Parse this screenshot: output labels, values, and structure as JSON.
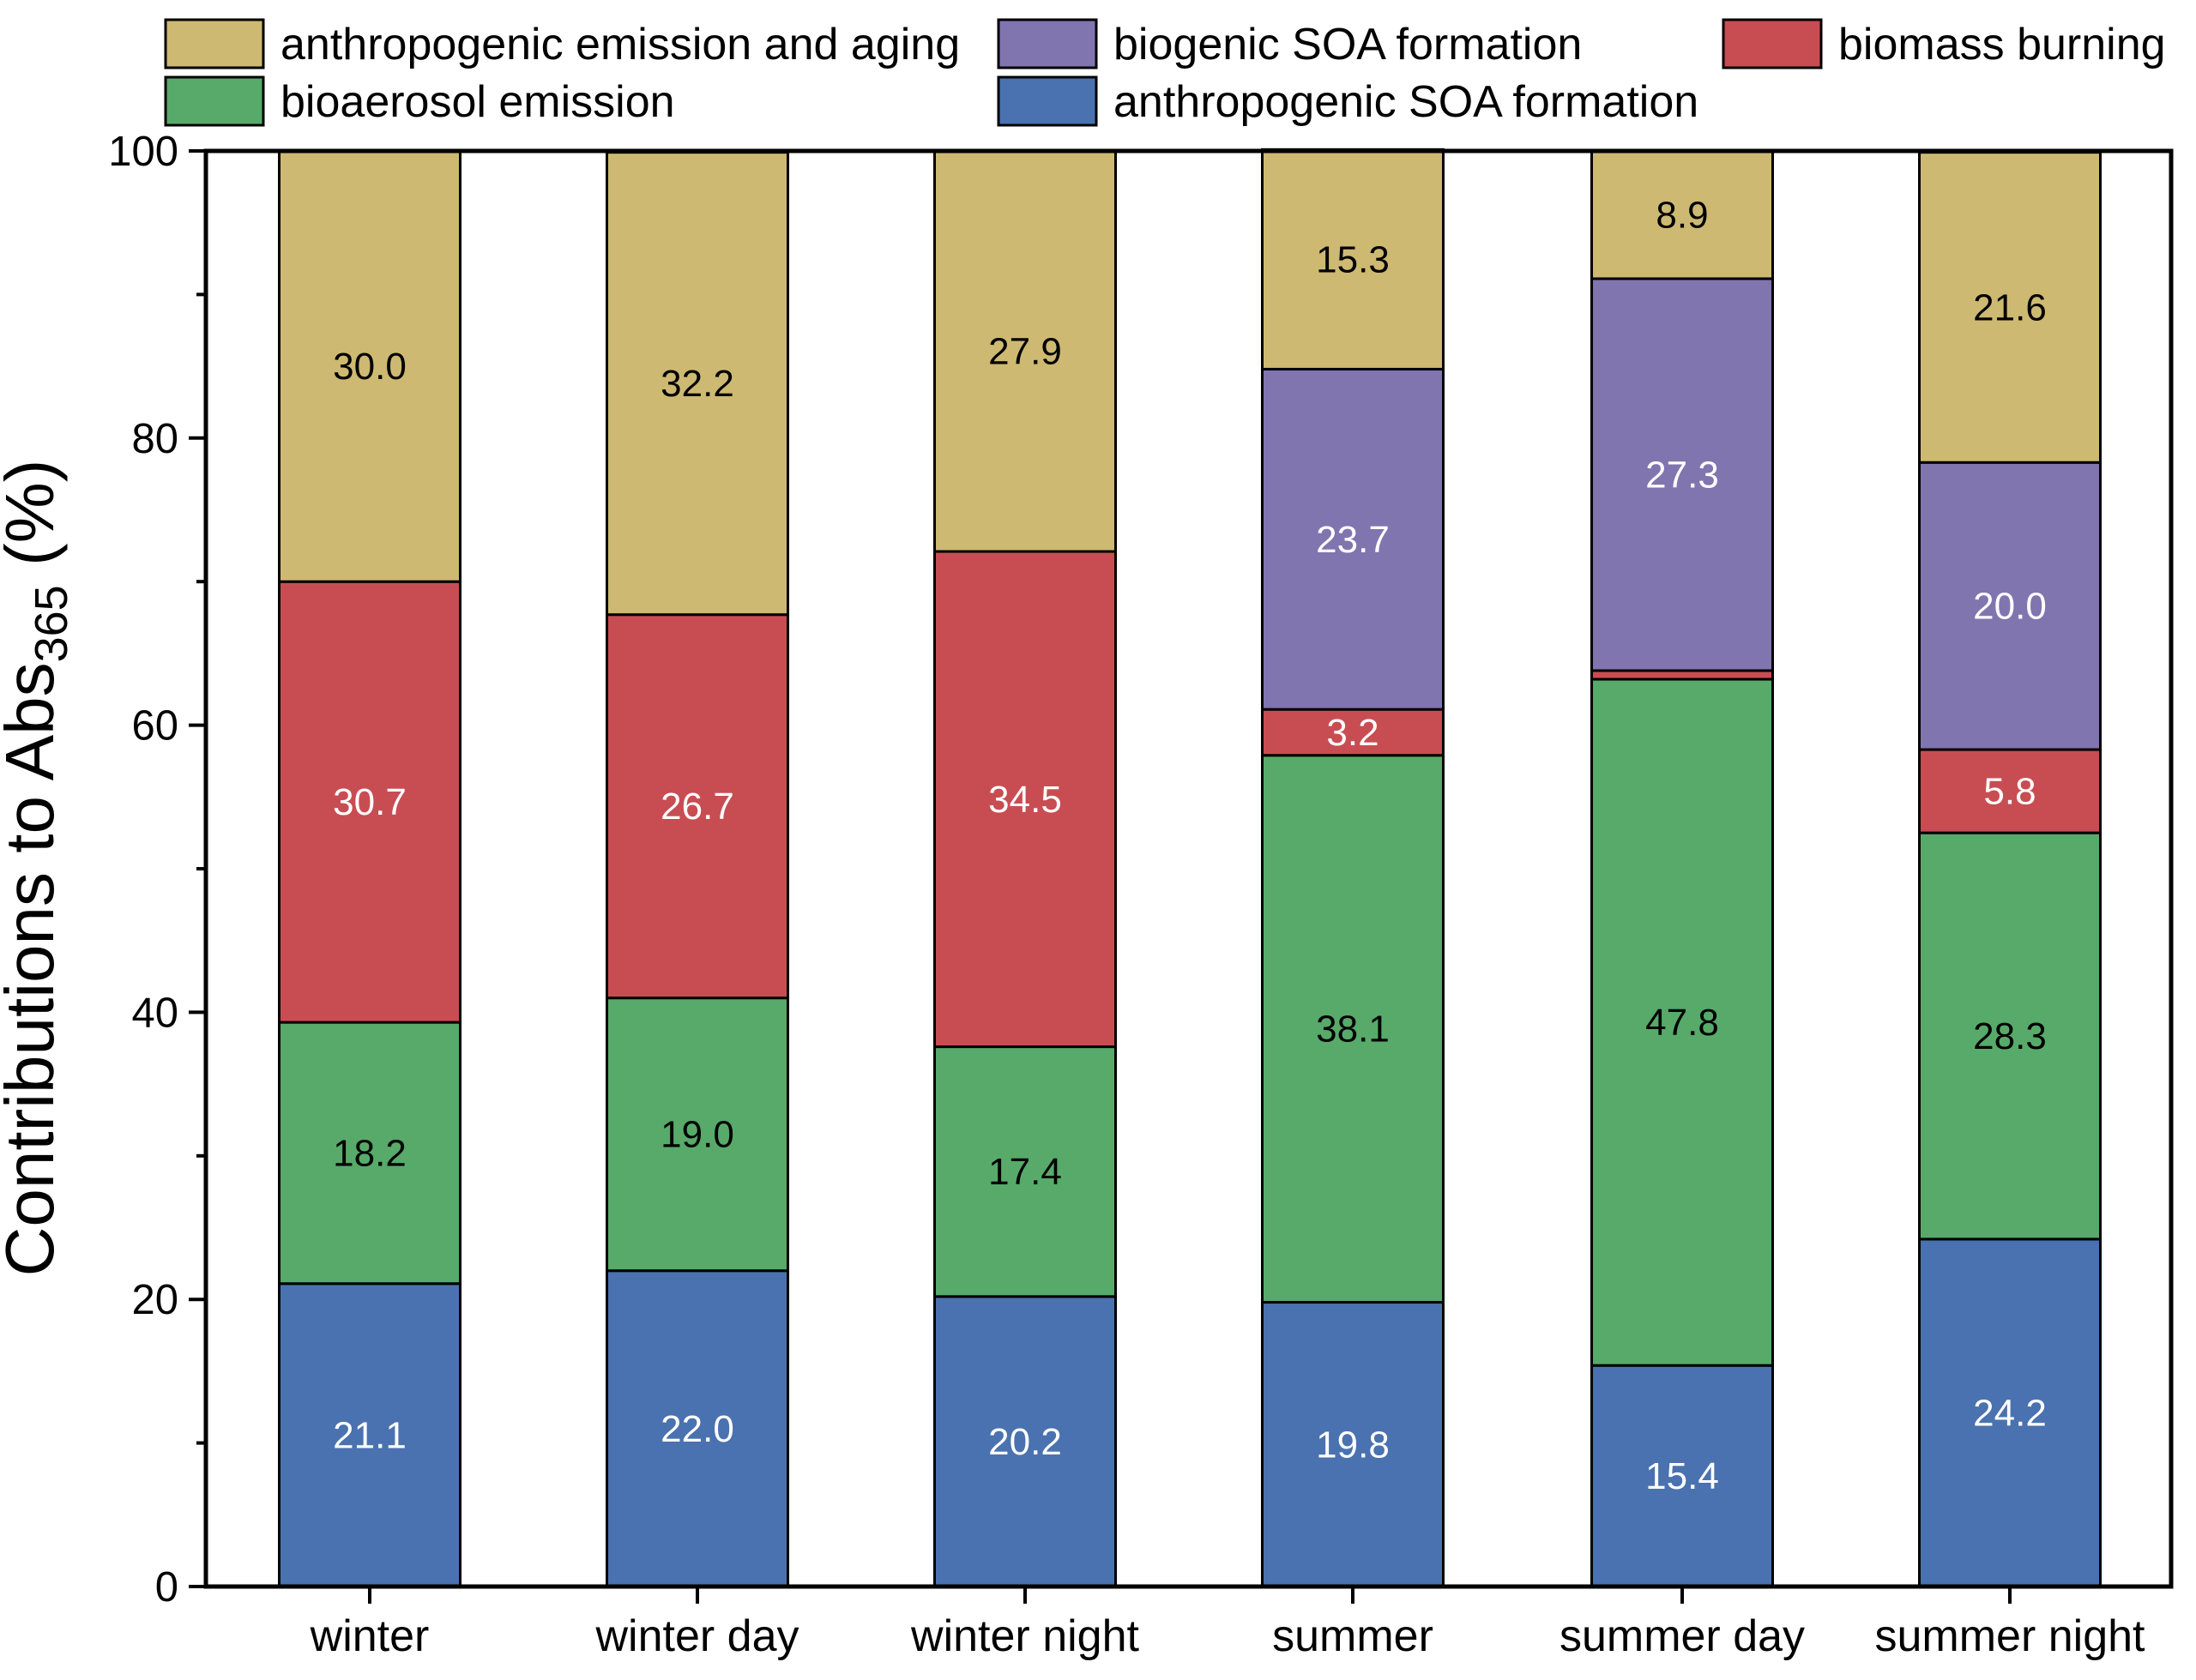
{
  "chart_data": {
    "type": "bar",
    "stacked": true,
    "categories": [
      "winter",
      "winter day",
      "winter night",
      "summer",
      "summer day",
      "summer night"
    ],
    "ylabel_main": "Contributions to Abs",
    "ylabel_sub": "365",
    "ylabel_unit": " (%)",
    "ylim": [
      0,
      100
    ],
    "yticks": [
      0,
      20,
      40,
      60,
      80,
      100
    ],
    "grid": false,
    "legend_placement": "top",
    "series": [
      {
        "name": "anthropogenic SOA formation",
        "color": "#4A72B0",
        "label_color": "#ffffff",
        "values": [
          21.1,
          22.0,
          20.2,
          19.8,
          15.4,
          24.2
        ],
        "labels": [
          "21.1",
          "22.0",
          "20.2",
          "19.8",
          "15.4",
          "24.2"
        ]
      },
      {
        "name": "bioaerosol emission",
        "color": "#57AA69",
        "label_color": "#000000",
        "values": [
          18.2,
          19.0,
          17.4,
          38.1,
          47.8,
          28.3
        ],
        "labels": [
          "18.2",
          "19.0",
          "17.4",
          "38.1",
          "47.8",
          "28.3"
        ]
      },
      {
        "name": "biomass burning",
        "color": "#C84D52",
        "label_color": "#ffffff",
        "values": [
          30.7,
          26.7,
          34.5,
          3.2,
          0.6,
          5.8
        ],
        "labels": [
          "30.7",
          "26.7",
          "34.5",
          "3.2",
          "",
          "5.8"
        ]
      },
      {
        "name": "biogenic SOA formation",
        "color": "#8175B0",
        "label_color": "#ffffff",
        "values": [
          0,
          0,
          0,
          23.7,
          27.3,
          20.0
        ],
        "labels": [
          "",
          "",
          "",
          "23.7",
          "27.3",
          "20.0"
        ]
      },
      {
        "name": "anthropogenic emission and aging",
        "color": "#CDB972",
        "label_color": "#000000",
        "values": [
          30.0,
          32.2,
          27.9,
          15.3,
          8.9,
          21.6
        ],
        "labels": [
          "30.0",
          "32.2",
          "27.9",
          "15.3",
          "8.9",
          "21.6"
        ]
      }
    ],
    "legend_order": [
      "anthropogenic emission and aging",
      "biogenic SOA formation",
      "biomass burning",
      "bioaerosol emission",
      "anthropogenic SOA formation"
    ]
  }
}
